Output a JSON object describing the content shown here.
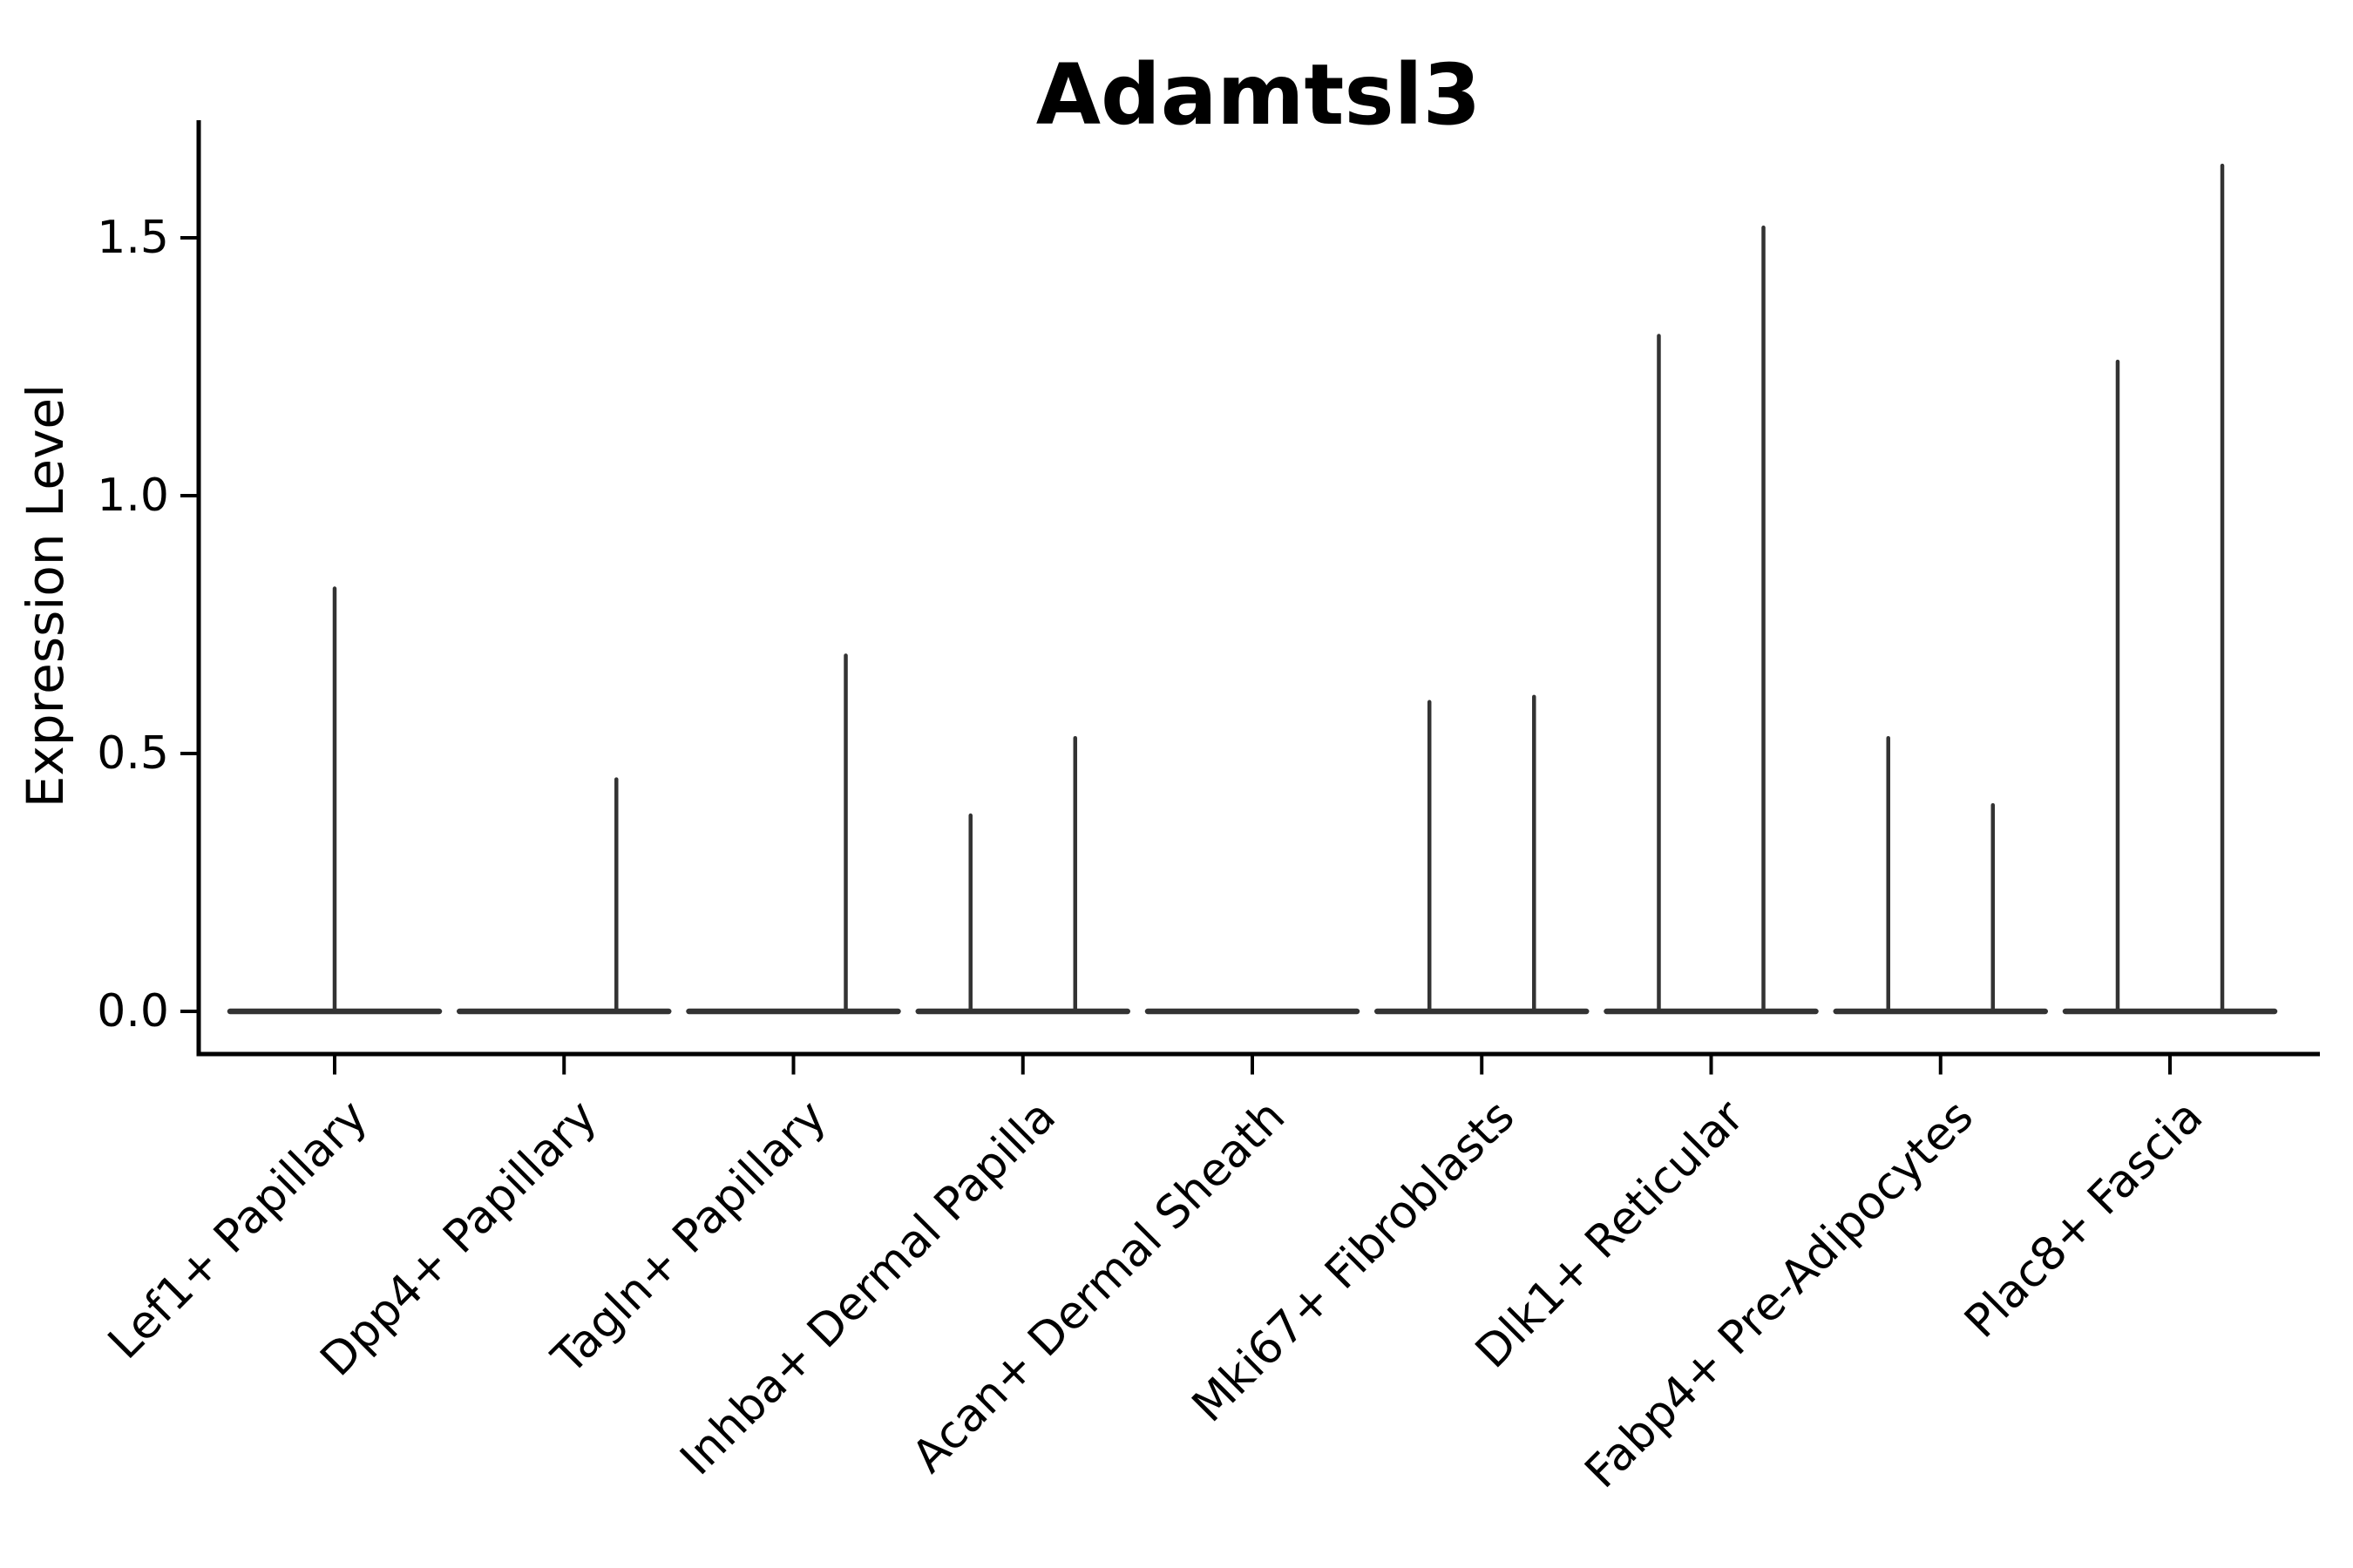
{
  "title": "Adamtsl3",
  "style": {
    "violin_line_color": "#333333",
    "axis_color": "#000000",
    "text_color": "#000000",
    "background": "#ffffff"
  },
  "chart_data": {
    "type": "violin",
    "title": "Adamtsl3",
    "xlabel": "",
    "ylabel": "Expression Level",
    "ylim": [
      0,
      1.72
    ],
    "yticks": [
      0.0,
      0.5,
      1.0,
      1.5
    ],
    "ytick_labels": [
      "0.0",
      "0.5",
      "1.0",
      "1.5"
    ],
    "grid": false,
    "legend": false,
    "categories": [
      "Lef1+ Papillary",
      "Dpp4+ Papillary",
      "Tagln+ Papillary",
      "Inhba+ Dermal Papilla",
      "Acan+ Dermal Sheath",
      "Mki67+ Fibroblasts",
      "Dlk1+ Reticular",
      "Fabp4+ Pre-Adipocytes",
      "Plac8+ Fascia"
    ],
    "violins": [
      {
        "category": "Lef1+ Papillary",
        "baseline_value": 0.0,
        "spikes": [
          {
            "offset_frac": 0.0,
            "max_value": 0.82
          }
        ]
      },
      {
        "category": "Dpp4+ Papillary",
        "baseline_value": 0.0,
        "spikes": [
          {
            "offset_frac": 0.228,
            "max_value": 0.45
          }
        ]
      },
      {
        "category": "Tagln+ Papillary",
        "baseline_value": 0.0,
        "spikes": [
          {
            "offset_frac": 0.228,
            "max_value": 0.69
          }
        ]
      },
      {
        "category": "Inhba+ Dermal Papilla",
        "baseline_value": 0.0,
        "spikes": [
          {
            "offset_frac": -0.228,
            "max_value": 0.38
          },
          {
            "offset_frac": 0.228,
            "max_value": 0.53
          }
        ]
      },
      {
        "category": "Acan+ Dermal Sheath",
        "baseline_value": 0.0,
        "spikes": []
      },
      {
        "category": "Mki67+ Fibroblasts",
        "baseline_value": 0.0,
        "spikes": [
          {
            "offset_frac": -0.228,
            "max_value": 0.6
          },
          {
            "offset_frac": 0.228,
            "max_value": 0.61
          }
        ]
      },
      {
        "category": "Dlk1+ Reticular",
        "baseline_value": 0.0,
        "spikes": [
          {
            "offset_frac": -0.228,
            "max_value": 1.31
          },
          {
            "offset_frac": 0.228,
            "max_value": 1.52
          }
        ]
      },
      {
        "category": "Fabp4+ Pre-Adipocytes",
        "baseline_value": 0.0,
        "spikes": [
          {
            "offset_frac": -0.228,
            "max_value": 0.53
          },
          {
            "offset_frac": 0.228,
            "max_value": 0.4
          }
        ]
      },
      {
        "category": "Plac8+ Fascia",
        "baseline_value": 0.0,
        "spikes": [
          {
            "offset_frac": -0.228,
            "max_value": 1.26
          },
          {
            "offset_frac": 0.228,
            "max_value": 1.64
          }
        ]
      }
    ]
  }
}
